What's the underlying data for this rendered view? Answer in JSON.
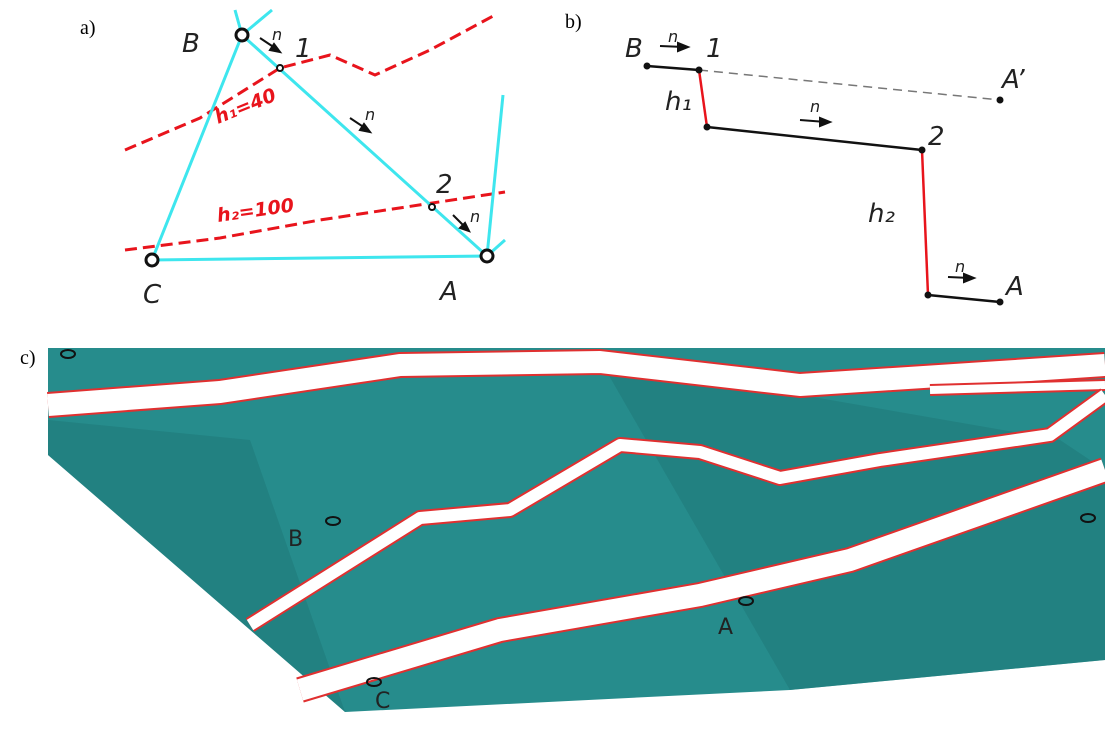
{
  "panel_labels": [
    "a)",
    "b)",
    "c)"
  ],
  "panel_a": {
    "labels": {
      "B": "B",
      "p1": "1",
      "p2": "2",
      "C": "C",
      "A": "A"
    },
    "normal": "n",
    "contours": [
      "h₁=40",
      "h₂=100"
    ]
  },
  "panel_b": {
    "labels": {
      "B": "B",
      "p1": "1",
      "A_prime": "A’",
      "p2": "2",
      "A": "A"
    },
    "normal": "n",
    "heights": [
      "h₁",
      "h₂"
    ]
  },
  "panel_c": {
    "labels": {
      "B": "B",
      "A": "A",
      "C": "C"
    }
  }
}
